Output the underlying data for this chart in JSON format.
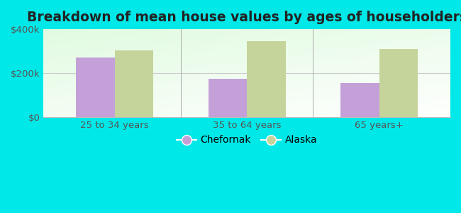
{
  "title": "Breakdown of mean house values by ages of householders",
  "categories": [
    "25 to 34 years",
    "35 to 64 years",
    "65 years+"
  ],
  "chefornak_values": [
    270000,
    175000,
    155000
  ],
  "alaska_values": [
    305000,
    345000,
    310000
  ],
  "chefornak_color": "#c4a0d8",
  "alaska_color": "#c5d49a",
  "ylim": [
    0,
    400000
  ],
  "ytick_labels": [
    "$0",
    "$200k",
    "$400k"
  ],
  "ytick_vals": [
    0,
    200000,
    400000
  ],
  "background_color": "#00e8e8",
  "legend_labels": [
    "Chefornak",
    "Alaska"
  ],
  "bar_width": 0.38,
  "title_fontsize": 13.5,
  "tick_fontsize": 9.5,
  "legend_fontsize": 10
}
